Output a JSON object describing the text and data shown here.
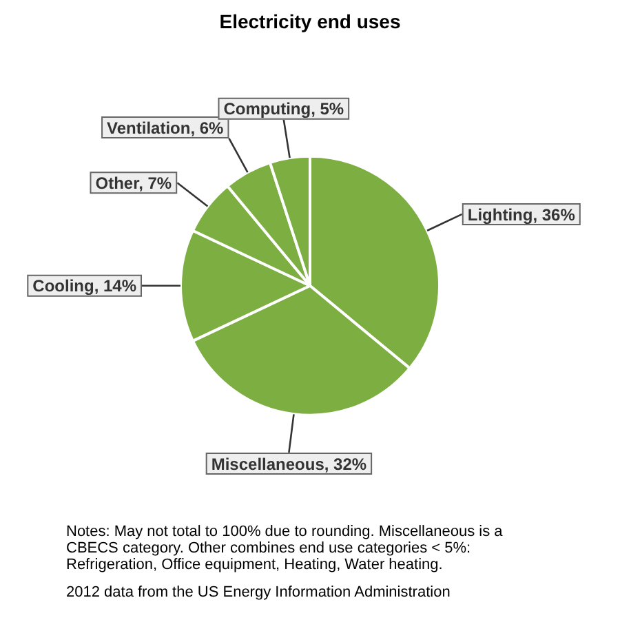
{
  "chart_data": {
    "type": "pie",
    "title": "Electricity end uses",
    "categories": [
      "Lighting",
      "Miscellaneous",
      "Cooling",
      "Other",
      "Ventilation",
      "Computing"
    ],
    "values": [
      36,
      32,
      14,
      7,
      6,
      5
    ],
    "colors": [
      "#7cae42",
      "#7cae42",
      "#7cae42",
      "#7cae42",
      "#7cae42",
      "#7cae42"
    ],
    "value_labels": [
      "36%",
      "32%",
      "14%",
      "7%",
      "6%",
      "5%"
    ],
    "legend": false,
    "annotations": [
      "Notes: May not total to 100% due to rounding. Miscellaneous is a CBECS category. Other combines end use categories < 5%: Refrigeration, Office equipment, Heating, Water heating.",
      "2012 data from the US Energy Information Administration"
    ]
  }
}
